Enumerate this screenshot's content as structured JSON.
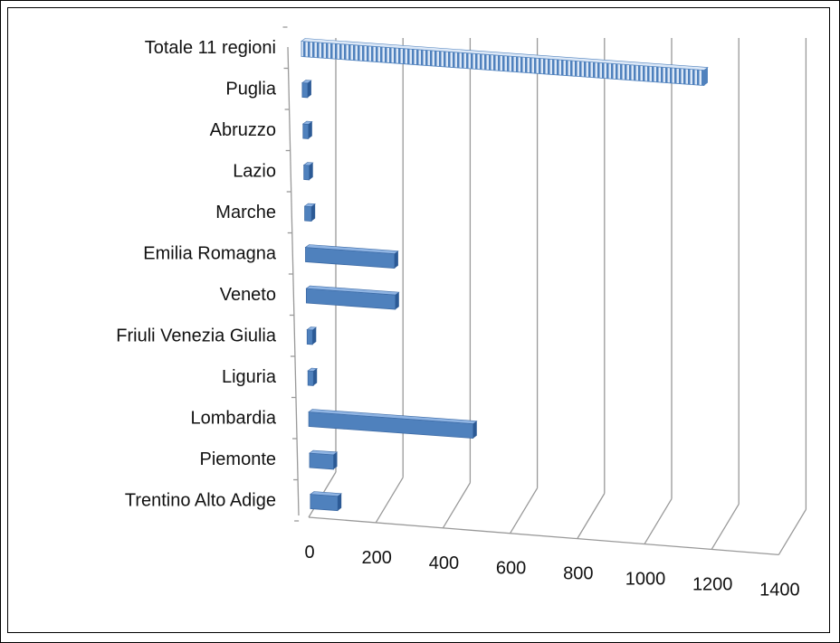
{
  "chart_data": {
    "type": "bar",
    "orientation": "horizontal",
    "style": "3d",
    "title": "",
    "xlabel": "",
    "ylabel": "",
    "xlim": [
      0,
      1400
    ],
    "grid": true,
    "legend": "none",
    "categories": [
      "Totale 11 regioni",
      "Puglia",
      "Abruzzo",
      "Lazio",
      "Marche",
      "Emilia Romagna",
      "Veneto",
      "Friuli Venezia Giulia",
      "Liguria",
      "Lombardia",
      "Piemonte",
      "Trentino Alto Adige"
    ],
    "values": [
      1230,
      5,
      5,
      5,
      20,
      260,
      260,
      5,
      5,
      480,
      70,
      80
    ],
    "highlight_category": "Totale 11 regioni",
    "x_ticks": [
      "0",
      "200",
      "400",
      "600",
      "800",
      "1000",
      "1200",
      "1400"
    ],
    "colors": {
      "bar_front": "#4f81bd",
      "bar_top": "#8fb4e3",
      "bar_side": "#2c5a95",
      "total_fill": "#dce8f7",
      "total_stripe": "#4f81bd",
      "grid": "#999999"
    }
  }
}
